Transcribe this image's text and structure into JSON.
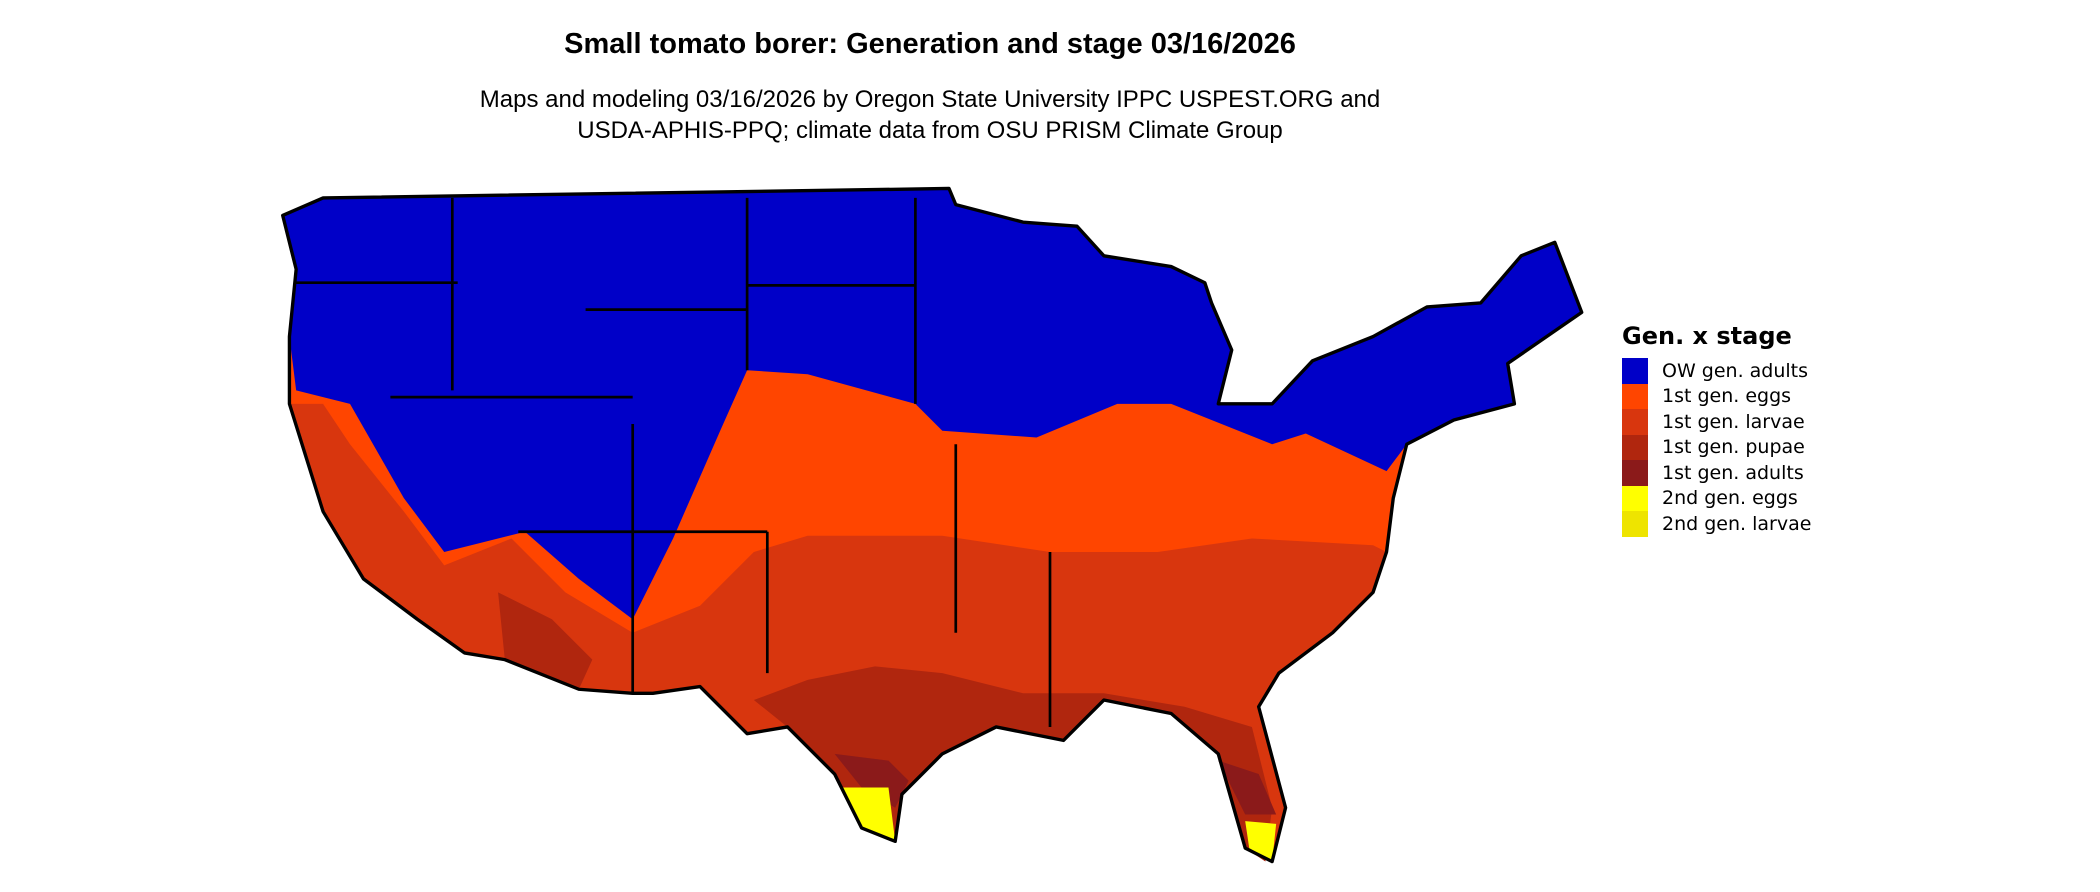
{
  "title": "Small tomato borer: Generation and stage 03/16/2026",
  "subtitle_line1": "Maps and modeling 03/16/2026 by Oregon State University IPPC USPEST.ORG and",
  "subtitle_line2": "USDA-APHIS-PPQ; climate data from OSU PRISM Climate Group",
  "legend": {
    "title": "Gen. x stage",
    "items": [
      {
        "label": "OW gen. adults",
        "color": "#0000c8"
      },
      {
        "label": "1st gen. eggs",
        "color": "#ff4500"
      },
      {
        "label": "1st gen. larvae",
        "color": "#d8360e"
      },
      {
        "label": "1st gen. pupae",
        "color": "#b0260e"
      },
      {
        "label": "1st gen. adults",
        "color": "#8b1a1a"
      },
      {
        "label": "2nd gen. eggs",
        "color": "#ffff00"
      },
      {
        "label": "2nd gen. larvae",
        "color": "#eee400"
      }
    ]
  }
}
